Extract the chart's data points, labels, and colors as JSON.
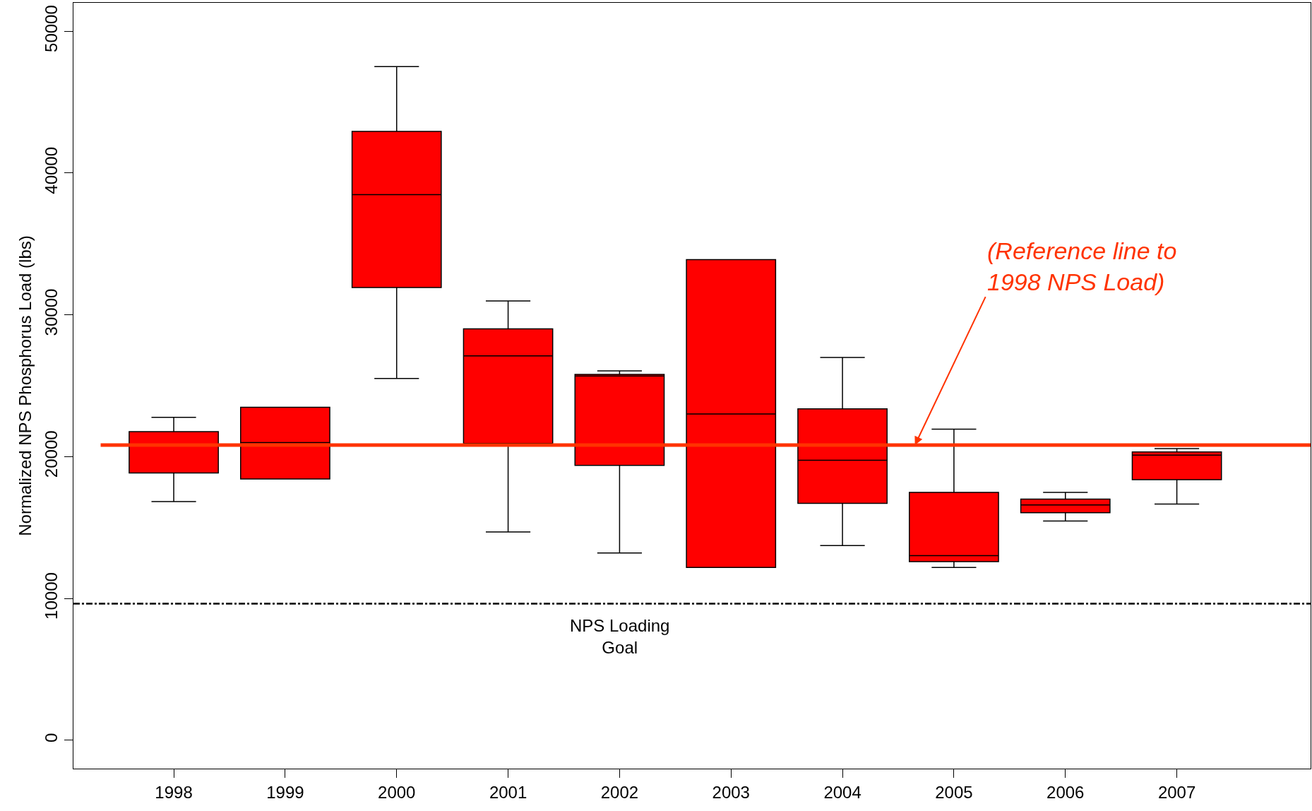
{
  "chart_data": {
    "type": "box",
    "ylabel": "Normalized NPS Phosphorus Load (lbs)",
    "categories": [
      "1998",
      "1999",
      "2000",
      "2001",
      "2002",
      "2003",
      "2004",
      "2005",
      "2006",
      "2007"
    ],
    "color": "#ff0000",
    "boxes": [
      {
        "low": 16830,
        "q1": 18850,
        "median": 20810,
        "q3": 21760,
        "high": 22770
      },
      {
        "low": 18430,
        "q1": 18430,
        "median": 20990,
        "q3": 23480,
        "high": 23480
      },
      {
        "low": 25510,
        "q1": 31930,
        "median": 38470,
        "q3": 42930,
        "high": 47500
      },
      {
        "low": 14690,
        "q1": 20930,
        "median": 27110,
        "q3": 29010,
        "high": 30980
      },
      {
        "low": 13200,
        "q1": 19380,
        "median": 25680,
        "q3": 25800,
        "high": 26040
      },
      {
        "low": 12190,
        "q1": 12190,
        "median": 23010,
        "q3": 33890,
        "high": 33890
      },
      {
        "low": 13730,
        "q1": 16710,
        "median": 19740,
        "q3": 23370,
        "high": 26990
      },
      {
        "low": 12190,
        "q1": 12600,
        "median": 13020,
        "q3": 17480,
        "high": 21940
      },
      {
        "low": 15460,
        "q1": 16050,
        "median": 16590,
        "q3": 17000,
        "high": 17480
      },
      {
        "low": 16650,
        "q1": 18370,
        "median": 20100,
        "q3": 20330,
        "high": 20570
      }
    ],
    "ylim": [
      -2000,
      52000
    ],
    "yticks": [
      0,
      10000,
      20000,
      30000,
      40000,
      50000
    ],
    "grid": false,
    "ref_lines": [
      {
        "axis": "y",
        "value": 20810,
        "label": "(Reference line to\n1998 NPS Load)",
        "color": "#ff3300",
        "line_style": "solid"
      },
      {
        "axis": "y",
        "value": 9630,
        "label": "NPS Loading\nGoal",
        "color": "#000000",
        "line_style": "dashed"
      }
    ]
  }
}
